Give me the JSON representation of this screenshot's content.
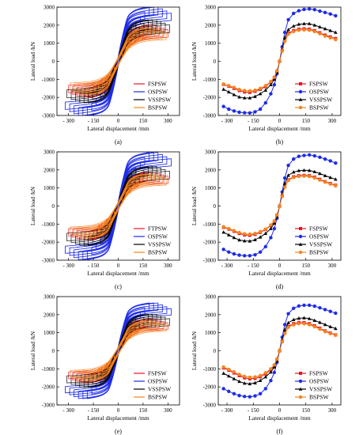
{
  "colors": {
    "red": "#e8141e",
    "blue": "#1d2be8",
    "black": "#000000",
    "orange": "#f5841e"
  },
  "chart_data": [
    {
      "type": "line",
      "kind": "hysteresis",
      "panel_label": "(a)",
      "xlabel": "Lateral displacement /mm",
      "ylabel": "Lateral load /kN",
      "xlim": [
        -370,
        370
      ],
      "ylim": [
        -3000,
        3000
      ],
      "xticks": [
        -300,
        -150,
        0,
        150,
        300
      ],
      "xtick_labels": [
        "- 300",
        "- 150",
        "0",
        "150",
        "300"
      ],
      "yticks": [
        -3000,
        -2000,
        -1000,
        0,
        1000,
        2000,
        3000
      ],
      "series": [
        {
          "name": "FSPSW",
          "color": "red",
          "peak_pos": 1750,
          "peak_neg": -1700,
          "max_disp": 300
        },
        {
          "name": "OSPSW",
          "color": "blue",
          "peak_pos": 2800,
          "peak_neg": -2700,
          "max_disp": 320
        },
        {
          "name": "VSSPSW",
          "color": "black",
          "peak_pos": 2050,
          "peak_neg": -2000,
          "max_disp": 310
        },
        {
          "name": "BSPSW",
          "color": "orange",
          "peak_pos": 1600,
          "peak_neg": -1550,
          "max_disp": 290
        }
      ]
    },
    {
      "type": "line",
      "kind": "skeleton",
      "panel_label": "(b)",
      "xlabel": "Lateral displacement /mm",
      "ylabel": "Lateral load /kN",
      "xlim": [
        -350,
        350
      ],
      "ylim": [
        -3000,
        3000
      ],
      "xticks": [
        -300,
        -150,
        0,
        150,
        300
      ],
      "xtick_labels": [
        "- 300",
        "- 150",
        "0",
        "150",
        "300"
      ],
      "yticks": [
        -3000,
        -2000,
        -1000,
        0,
        1000,
        2000,
        3000
      ],
      "x": [
        -320,
        -290,
        -260,
        -230,
        -200,
        -170,
        -140,
        -110,
        -80,
        -50,
        -30,
        -15,
        0,
        15,
        30,
        50,
        80,
        110,
        140,
        170,
        200,
        230,
        260,
        290,
        320
      ],
      "series": [
        {
          "name": "FSPSW",
          "color": "red",
          "marker": "square",
          "values": [
            -1280,
            -1380,
            -1500,
            -1620,
            -1700,
            -1720,
            -1660,
            -1550,
            -1400,
            -1150,
            -900,
            -550,
            0,
            600,
            1150,
            1550,
            1700,
            1780,
            1800,
            1780,
            1700,
            1580,
            1450,
            1350,
            1260
          ]
        },
        {
          "name": "OSPSW",
          "color": "blue",
          "marker": "circle",
          "values": [
            -2500,
            -2650,
            -2750,
            -2820,
            -2850,
            -2860,
            -2800,
            -2650,
            -2300,
            -1800,
            -1300,
            -700,
            0,
            800,
            1600,
            2300,
            2650,
            2800,
            2870,
            2900,
            2860,
            2780,
            2700,
            2620,
            2520
          ]
        },
        {
          "name": "VSSPSW",
          "color": "black",
          "marker": "triangle",
          "values": [
            -1550,
            -1700,
            -1850,
            -1980,
            -2030,
            -2030,
            -1950,
            -1800,
            -1600,
            -1300,
            -1000,
            -600,
            0,
            650,
            1300,
            1750,
            1950,
            2050,
            2080,
            2080,
            2000,
            1900,
            1800,
            1700,
            1600
          ]
        },
        {
          "name": "BSPSW",
          "color": "orange",
          "marker": "circle",
          "values": [
            -1260,
            -1350,
            -1450,
            -1560,
            -1620,
            -1640,
            -1600,
            -1500,
            -1350,
            -1120,
            -880,
            -520,
            0,
            570,
            1100,
            1500,
            1650,
            1720,
            1740,
            1720,
            1650,
            1530,
            1400,
            1300,
            1200
          ]
        }
      ]
    },
    {
      "type": "line",
      "kind": "hysteresis",
      "panel_label": "(c)",
      "xlabel": "Lateral displacement /mm",
      "ylabel": "Lateral load /kN",
      "xlim": [
        -370,
        370
      ],
      "ylim": [
        -3000,
        3000
      ],
      "xticks": [
        -300,
        -150,
        0,
        150,
        300
      ],
      "xtick_labels": [
        "- 300",
        "- 150",
        "0",
        "150",
        "300"
      ],
      "yticks": [
        -3000,
        -2000,
        -1000,
        0,
        1000,
        2000,
        3000
      ],
      "series": [
        {
          "name": "FTPSW",
          "color": "red",
          "peak_pos": 1650,
          "peak_neg": -1600,
          "max_disp": 300
        },
        {
          "name": "OSPSW",
          "color": "blue",
          "peak_pos": 2750,
          "peak_neg": -2650,
          "max_disp": 320
        },
        {
          "name": "VSSPSW",
          "color": "black",
          "peak_pos": 1950,
          "peak_neg": -1900,
          "max_disp": 310
        },
        {
          "name": "BSPSW",
          "color": "orange",
          "peak_pos": 1550,
          "peak_neg": -1500,
          "max_disp": 290
        }
      ]
    },
    {
      "type": "line",
      "kind": "skeleton",
      "panel_label": "(d)",
      "xlabel": "Lateral displacement /mm",
      "ylabel": "Lateral load /kN",
      "xlim": [
        -350,
        350
      ],
      "ylim": [
        -3000,
        3000
      ],
      "xticks": [
        -300,
        -150,
        0,
        150,
        300
      ],
      "xtick_labels": [
        "- 300",
        "- 150",
        "0",
        "150",
        "300"
      ],
      "yticks": [
        -3000,
        -2000,
        -1000,
        0,
        1000,
        2000,
        3000
      ],
      "x": [
        -320,
        -290,
        -260,
        -230,
        -200,
        -170,
        -140,
        -110,
        -80,
        -50,
        -30,
        -15,
        0,
        15,
        30,
        50,
        80,
        110,
        140,
        170,
        200,
        230,
        260,
        290,
        320
      ],
      "series": [
        {
          "name": "FSPSW",
          "color": "red",
          "marker": "square",
          "values": [
            -1180,
            -1280,
            -1400,
            -1520,
            -1600,
            -1620,
            -1570,
            -1460,
            -1300,
            -1080,
            -850,
            -500,
            0,
            560,
            1080,
            1450,
            1620,
            1680,
            1700,
            1680,
            1600,
            1480,
            1350,
            1250,
            1150
          ]
        },
        {
          "name": "OSPSW",
          "color": "blue",
          "marker": "circle",
          "values": [
            -2400,
            -2550,
            -2650,
            -2720,
            -2750,
            -2750,
            -2700,
            -2550,
            -2250,
            -1750,
            -1250,
            -680,
            0,
            780,
            1550,
            2250,
            2600,
            2750,
            2800,
            2830,
            2780,
            2700,
            2600,
            2500,
            2380
          ]
        },
        {
          "name": "VSSPSW",
          "color": "black",
          "marker": "triangle",
          "values": [
            -1450,
            -1600,
            -1750,
            -1880,
            -1930,
            -1940,
            -1870,
            -1720,
            -1520,
            -1250,
            -950,
            -580,
            0,
            620,
            1250,
            1700,
            1880,
            1960,
            1980,
            1970,
            1900,
            1800,
            1680,
            1580,
            1480
          ]
        },
        {
          "name": "BSPSW",
          "color": "orange",
          "marker": "circle",
          "values": [
            -1150,
            -1250,
            -1360,
            -1470,
            -1540,
            -1560,
            -1520,
            -1420,
            -1280,
            -1050,
            -830,
            -490,
            0,
            540,
            1050,
            1420,
            1580,
            1640,
            1660,
            1640,
            1560,
            1440,
            1320,
            1220,
            1120
          ]
        }
      ]
    },
    {
      "type": "line",
      "kind": "hysteresis",
      "panel_label": "(e)",
      "xlabel": "Lateral displacement /mm",
      "ylabel": "Lateral load /kN",
      "xlim": [
        -370,
        370
      ],
      "ylim": [
        -3000,
        3000
      ],
      "xticks": [
        -300,
        -150,
        0,
        150,
        300
      ],
      "xtick_labels": [
        "- 300",
        "- 150",
        "0",
        "150",
        "300"
      ],
      "yticks": [
        -3000,
        -2000,
        -1000,
        0,
        1000,
        2000,
        3000
      ],
      "series": [
        {
          "name": "FSPSW",
          "color": "red",
          "peak_pos": 1550,
          "peak_neg": -1500,
          "max_disp": 300
        },
        {
          "name": "OSPSW",
          "color": "blue",
          "peak_pos": 2450,
          "peak_neg": -2450,
          "max_disp": 320
        },
        {
          "name": "VSSPSW",
          "color": "black",
          "peak_pos": 1800,
          "peak_neg": -1750,
          "max_disp": 310
        },
        {
          "name": "BSPSW",
          "color": "orange",
          "peak_pos": 1450,
          "peak_neg": -1400,
          "max_disp": 290
        }
      ]
    },
    {
      "type": "line",
      "kind": "skeleton",
      "panel_label": "(f)",
      "xlabel": "Lateral displacement /mm",
      "ylabel": "Lateral load /kN",
      "xlim": [
        -350,
        350
      ],
      "ylim": [
        -3000,
        3000
      ],
      "xticks": [
        -300,
        -150,
        0,
        150,
        300
      ],
      "xtick_labels": [
        "- 300",
        "- 150",
        "0",
        "150",
        "300"
      ],
      "yticks": [
        -3000,
        -2000,
        -1000,
        0,
        1000,
        2000,
        3000
      ],
      "x": [
        -320,
        -290,
        -260,
        -230,
        -200,
        -170,
        -140,
        -110,
        -80,
        -50,
        -30,
        -15,
        0,
        15,
        30,
        50,
        80,
        110,
        140,
        170,
        200,
        230,
        260,
        290,
        320
      ],
      "series": [
        {
          "name": "FSPSW",
          "color": "red",
          "marker": "square",
          "values": [
            -950,
            -1080,
            -1230,
            -1380,
            -1500,
            -1550,
            -1530,
            -1440,
            -1280,
            -1050,
            -820,
            -480,
            0,
            520,
            1000,
            1350,
            1500,
            1560,
            1560,
            1500,
            1380,
            1250,
            1100,
            980,
            880
          ]
        },
        {
          "name": "OSPSW",
          "color": "blue",
          "marker": "circle",
          "values": [
            -2100,
            -2250,
            -2380,
            -2480,
            -2530,
            -2550,
            -2500,
            -2380,
            -2100,
            -1650,
            -1200,
            -650,
            0,
            750,
            1450,
            2050,
            2350,
            2480,
            2520,
            2520,
            2470,
            2380,
            2280,
            2180,
            2080
          ]
        },
        {
          "name": "VSSPSW",
          "color": "black",
          "marker": "triangle",
          "values": [
            -1250,
            -1400,
            -1550,
            -1700,
            -1800,
            -1830,
            -1780,
            -1650,
            -1450,
            -1180,
            -900,
            -550,
            0,
            580,
            1150,
            1550,
            1720,
            1800,
            1820,
            1780,
            1680,
            1570,
            1450,
            1330,
            1230
          ]
        },
        {
          "name": "BSPSW",
          "color": "orange",
          "marker": "circle",
          "values": [
            -900,
            -1030,
            -1170,
            -1310,
            -1420,
            -1470,
            -1450,
            -1370,
            -1220,
            -1000,
            -780,
            -460,
            0,
            500,
            960,
            1300,
            1440,
            1500,
            1500,
            1440,
            1330,
            1200,
            1060,
            950,
            860
          ]
        }
      ]
    }
  ]
}
